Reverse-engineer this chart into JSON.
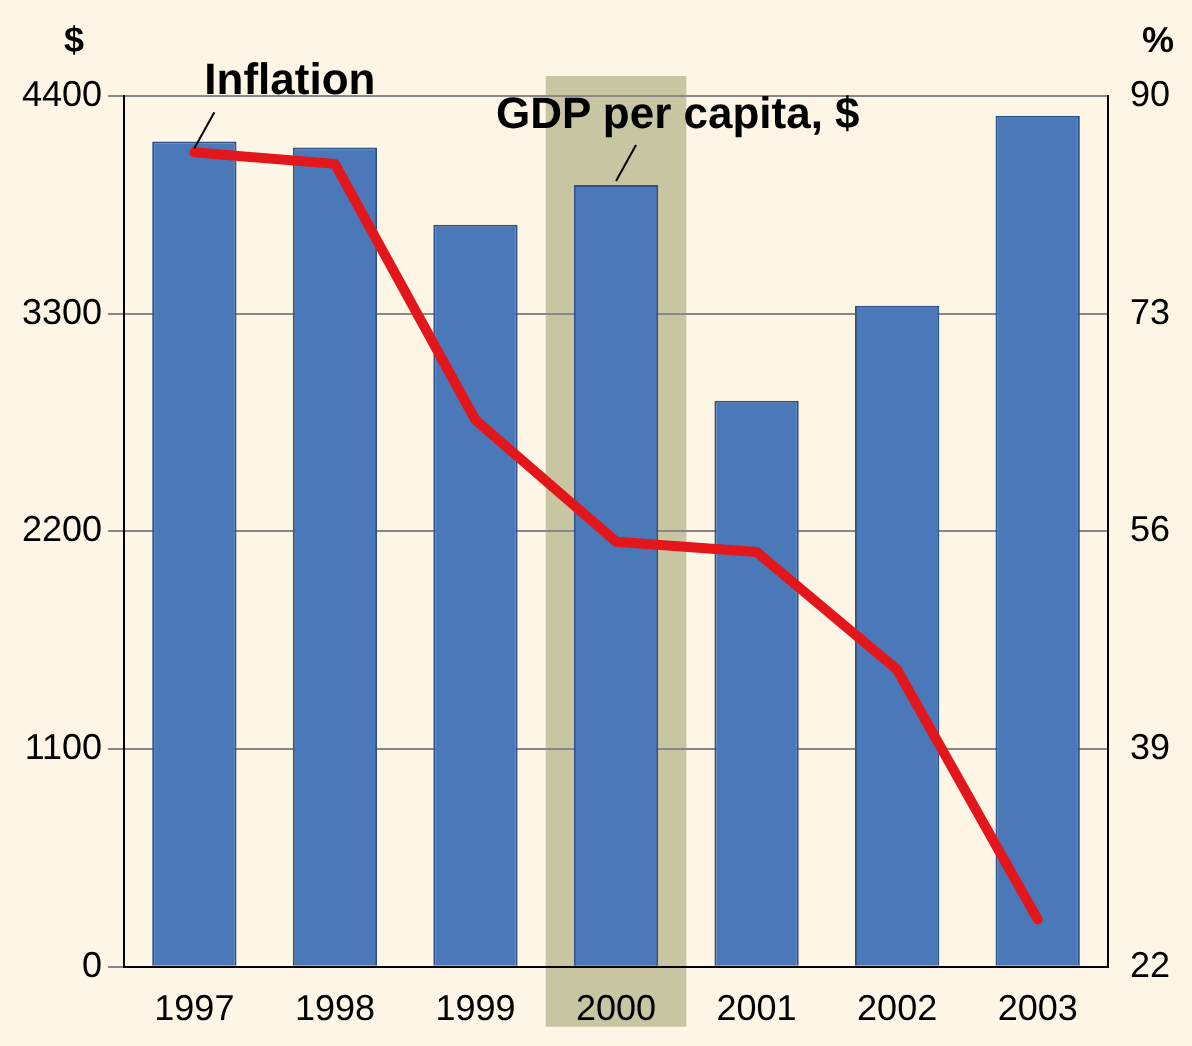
{
  "chart_data": {
    "type": "bar",
    "ylabel": "$",
    "y2label": "%",
    "categories": [
      "1997",
      "1998",
      "1999",
      "2000",
      "2001",
      "2002",
      "2003"
    ],
    "series": [
      {
        "name": "GDP per capita, $",
        "color": "#4a78b8",
        "values": [
          4170,
          4140,
          3750,
          3950,
          2860,
          3340,
          4300
        ]
      },
      {
        "name": "Inflation",
        "type": "line",
        "axis": "y2",
        "color": "#e3161b",
        "values": [
          85.6,
          84.7,
          64.7,
          55.2,
          54.4,
          45.2,
          25.7
        ]
      }
    ],
    "ylim": [
      0,
      4400
    ],
    "yticks": [
      0,
      1100,
      2200,
      3300,
      4400
    ],
    "y2lim": [
      22,
      90
    ],
    "y2ticks": [
      22,
      39,
      56,
      73,
      90
    ],
    "bands": [
      {
        "axis": "x",
        "from": "2000",
        "to": "2000",
        "color": "#c8c5a3"
      }
    ],
    "grid": "y",
    "legend": false
  }
}
